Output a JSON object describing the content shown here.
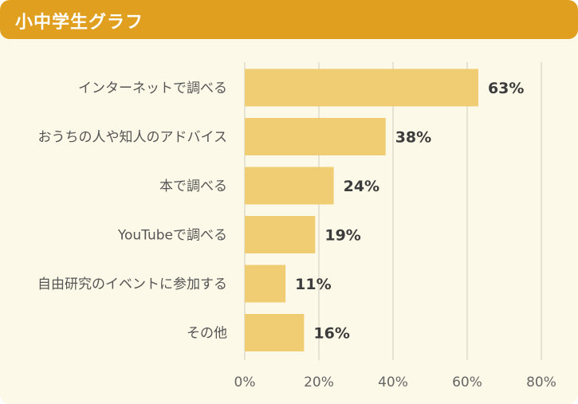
{
  "header": {
    "title": "小中学生グラフ"
  },
  "colors": {
    "bar": "#f0cc72",
    "header": "#e09f1e",
    "background": "#fdf9e8",
    "grid": "#e0dccd"
  },
  "chart_data": {
    "type": "bar",
    "orientation": "horizontal",
    "categories": [
      "インターネットで調べる",
      "おうちの人や知人のアドバイス",
      "本で調べる",
      "YouTubeで調べる",
      "自由研究のイベントに参加する",
      "その他"
    ],
    "values": [
      63,
      38,
      24,
      19,
      11,
      16
    ],
    "value_labels": [
      "63%",
      "38%",
      "24%",
      "19%",
      "11%",
      "16%"
    ],
    "xlim": [
      0,
      80
    ],
    "xticks": [
      0,
      20,
      40,
      60,
      80
    ],
    "xtick_labels": [
      "0%",
      "20%",
      "40%",
      "60%",
      "80%"
    ],
    "grid": true
  }
}
